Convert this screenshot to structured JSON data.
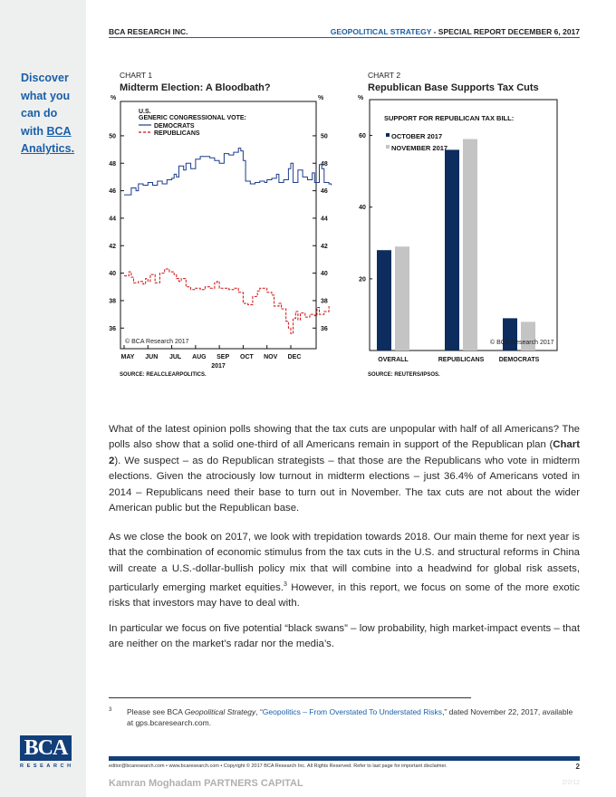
{
  "sidebar": {
    "promo_lines": [
      "Discover",
      "what you",
      "can do",
      "with"
    ],
    "promo_link_1": "BCA",
    "promo_link_2": "Analytics.",
    "logo_text": "BCA",
    "logo_sub": "RESEARCH"
  },
  "header": {
    "left": "BCA RESEARCH INC.",
    "right_blue": "GEOPOLITICAL STRATEGY",
    "right_rest": " - SPECIAL REPORT  DECEMBER 6, 2017"
  },
  "charts": {
    "chart1": {
      "label": "CHART 1",
      "title": "Midterm Election: A Bloodbath?",
      "unit_left": "%",
      "unit_right": "%",
      "legend_title_1": "U.S.",
      "legend_title_2": "GENERIC CONGRESSIONAL VOTE:",
      "legend_dem": "DEMOCRATS",
      "legend_rep": "REPUBLICANS",
      "copyright": "© BCA Research 2017",
      "year": "2017",
      "source": "SOURCE: REALCLEARPOLITICS."
    },
    "chart2": {
      "label": "CHART 2",
      "title": "Republican Base Supports Tax Cuts",
      "unit": "%",
      "inner_title": "SUPPORT FOR REPUBLICAN TAX BILL:",
      "copyright": "© BCA Research 2017",
      "source": "SOURCE: REUTERS/IPSOS."
    }
  },
  "chart_data": [
    {
      "type": "line",
      "title": "Midterm Election: A Bloodbath?",
      "subtitle": "U.S. GENERIC CONGRESSIONAL VOTE:",
      "ylabel": "%",
      "ylim": [
        34.5,
        52.5
      ],
      "yticks": [
        36,
        38,
        40,
        42,
        44,
        46,
        48,
        50
      ],
      "x_tick_labels": [
        "MAY",
        "JUN",
        "JUL",
        "AUG",
        "SEP",
        "OCT",
        "NOV",
        "DEC"
      ],
      "xlabel": "2017",
      "series": [
        {
          "name": "DEMOCRATS",
          "color": "#1c3d8c",
          "style": "solid",
          "points": [
            [
              0.0,
              45.7
            ],
            [
              0.2,
              45.7
            ],
            [
              0.3,
              46.2
            ],
            [
              0.5,
              46.0
            ],
            [
              0.6,
              46.5
            ],
            [
              0.8,
              46.4
            ],
            [
              1.0,
              46.6
            ],
            [
              1.2,
              46.4
            ],
            [
              1.4,
              46.7
            ],
            [
              1.6,
              46.5
            ],
            [
              1.8,
              46.8
            ],
            [
              2.0,
              46.9
            ],
            [
              2.1,
              47.2
            ],
            [
              2.2,
              47.0
            ],
            [
              2.3,
              47.8
            ],
            [
              2.5,
              47.5
            ],
            [
              2.6,
              48.0
            ],
            [
              2.8,
              47.6
            ],
            [
              3.0,
              48.3
            ],
            [
              3.2,
              48.5
            ],
            [
              3.4,
              48.5
            ],
            [
              3.6,
              48.4
            ],
            [
              3.8,
              48.2
            ],
            [
              4.0,
              48.0
            ],
            [
              4.2,
              48.7
            ],
            [
              4.4,
              48.6
            ],
            [
              4.6,
              48.8
            ],
            [
              4.8,
              49.1
            ],
            [
              4.9,
              48.9
            ],
            [
              5.0,
              48.2
            ],
            [
              5.1,
              46.7
            ],
            [
              5.3,
              46.5
            ],
            [
              5.5,
              46.6
            ],
            [
              5.7,
              46.7
            ],
            [
              5.9,
              46.6
            ],
            [
              6.0,
              46.8
            ],
            [
              6.2,
              46.9
            ],
            [
              6.4,
              47.2
            ],
            [
              6.5,
              46.6
            ],
            [
              6.7,
              46.8
            ],
            [
              6.9,
              47.6
            ],
            [
              7.0,
              48.0
            ],
            [
              7.1,
              46.6
            ],
            [
              7.3,
              47.5
            ],
            [
              7.5,
              47.0
            ],
            [
              7.7,
              46.8
            ],
            [
              7.9,
              47.3
            ],
            [
              8.0,
              46.6
            ],
            [
              8.2,
              47.9
            ],
            [
              8.3,
              47.6
            ],
            [
              8.4,
              46.6
            ],
            [
              8.6,
              46.5
            ],
            [
              8.7,
              46.4
            ]
          ]
        },
        {
          "name": "REPUBLICANS",
          "color": "#cc1010",
          "style": "dashed",
          "points": [
            [
              0.0,
              39.8
            ],
            [
              0.2,
              40.1
            ],
            [
              0.3,
              39.7
            ],
            [
              0.4,
              39.3
            ],
            [
              0.6,
              39.4
            ],
            [
              0.8,
              39.2
            ],
            [
              0.9,
              39.6
            ],
            [
              1.0,
              39.4
            ],
            [
              1.1,
              39.9
            ],
            [
              1.3,
              39.3
            ],
            [
              1.5,
              40.0
            ],
            [
              1.7,
              40.3
            ],
            [
              1.9,
              40.1
            ],
            [
              2.1,
              39.9
            ],
            [
              2.2,
              39.6
            ],
            [
              2.3,
              39.4
            ],
            [
              2.4,
              39.6
            ],
            [
              2.6,
              39.0
            ],
            [
              2.8,
              38.8
            ],
            [
              3.0,
              38.9
            ],
            [
              3.2,
              38.8
            ],
            [
              3.4,
              39.0
            ],
            [
              3.6,
              38.9
            ],
            [
              3.8,
              39.3
            ],
            [
              3.9,
              39.4
            ],
            [
              4.0,
              38.9
            ],
            [
              4.2,
              38.9
            ],
            [
              4.4,
              38.8
            ],
            [
              4.6,
              38.9
            ],
            [
              4.8,
              38.6
            ],
            [
              5.0,
              37.8
            ],
            [
              5.2,
              37.7
            ],
            [
              5.4,
              38.3
            ],
            [
              5.6,
              38.7
            ],
            [
              5.7,
              38.9
            ],
            [
              5.9,
              38.9
            ],
            [
              6.0,
              38.6
            ],
            [
              6.2,
              38.4
            ],
            [
              6.3,
              37.6
            ],
            [
              6.5,
              37.8
            ],
            [
              6.6,
              37.4
            ],
            [
              6.8,
              36.5
            ],
            [
              6.9,
              36.0
            ],
            [
              7.0,
              35.6
            ],
            [
              7.1,
              36.7
            ],
            [
              7.2,
              37.2
            ],
            [
              7.3,
              36.6
            ],
            [
              7.4,
              37.1
            ],
            [
              7.6,
              36.8
            ],
            [
              7.8,
              37.0
            ],
            [
              8.0,
              36.9
            ],
            [
              8.1,
              37.5
            ],
            [
              8.2,
              37.0
            ],
            [
              8.4,
              37.2
            ],
            [
              8.6,
              37.6
            ]
          ]
        }
      ]
    },
    {
      "type": "bar",
      "title": "Republican Base Supports Tax Cuts",
      "subtitle": "SUPPORT FOR REPUBLICAN TAX BILL:",
      "ylabel": "%",
      "ylim": [
        0,
        70
      ],
      "yticks": [
        20,
        40,
        60
      ],
      "categories": [
        "OVERALL",
        "REPUBLICANS",
        "DEMOCRATS"
      ],
      "series": [
        {
          "name": "OCTOBER 2017",
          "color": "#0c2d5e",
          "values": [
            28,
            56,
            9
          ]
        },
        {
          "name": "NOVEMBER 2017",
          "color": "#c4c4c4",
          "values": [
            29,
            59,
            8
          ]
        }
      ]
    }
  ],
  "body": {
    "p1_a": "What of the latest opinion polls showing that the tax cuts are unpopular with half of all Americans? The polls also show that a solid one-third of all Americans remain in support of the Republican plan (",
    "p1_bold": "Chart 2",
    "p1_b": "). We suspect – as do Republican strategists – that those are the Republicans who vote in midterm elections. Given the atrociously low turnout in midterm elections – just 36.4% of Americans voted in 2014 – Republicans need their base to turn out in November. The tax cuts are not about the wider American public but the Republican base.",
    "p2_a": "As we close the book on 2017, we look with trepidation towards 2018. Our main theme for next year is that the combination of economic stimulus from the tax cuts in the U.S. and structural reforms in China will create a U.S.-dollar-bullish policy mix that will combine into a headwind for global risk assets, particularly emerging market equities.",
    "p2_sup": "3",
    "p2_b": " However, in this report, we focus on some of the more exotic risks that investors may have to deal with.",
    "p3": "In particular we focus on five potential “black swans” – low probability, high market-impact events – that are neither on the market’s radar nor the media’s."
  },
  "footnote": {
    "num": "3",
    "pre": "Please see BCA ",
    "italic": "Geopolitical Strategy",
    "mid": ", “",
    "link": "Geopolitics – From Overstated To Understated Risks",
    "post": ",” dated November 22, 2017, available at gps.bcaresearch.com."
  },
  "footer": {
    "text": "editor@bcaresearch.com  •  www.bcaresearch.com  •  Copyright © 2017 BCA Research Inc. All Rights Reserved. Refer to last page for important disclaimer.",
    "page": "2",
    "watermark": "Kamran Moghadam PARTNERS CAPITAL",
    "faint": "2/2/12"
  }
}
